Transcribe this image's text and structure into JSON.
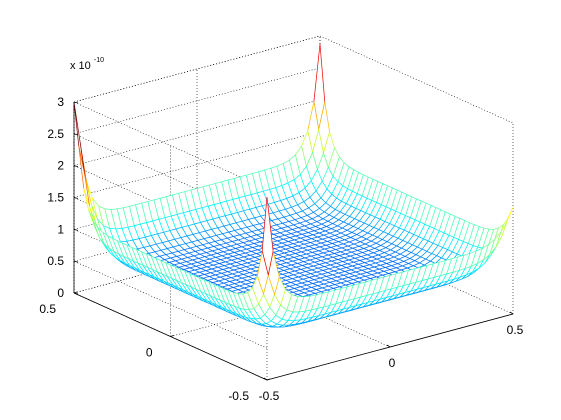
{
  "chart_data": {
    "type": "mesh3d",
    "title": "",
    "xlabel": "",
    "ylabel": "",
    "zlabel": "",
    "z_exponent_label": {
      "prefix": "x 10",
      "exponent": "-10"
    },
    "x_ticks": [
      {
        "value": -0.5,
        "label": "-0.5"
      },
      {
        "value": 0,
        "label": "0"
      },
      {
        "value": 0.5,
        "label": "0.5"
      }
    ],
    "y_ticks": [
      {
        "value": -0.5,
        "label": "-0.5"
      },
      {
        "value": 0,
        "label": "0"
      },
      {
        "value": 0.5,
        "label": "0.5"
      }
    ],
    "z_ticks": [
      {
        "value": 0,
        "label": "0"
      },
      {
        "value": 0.5,
        "label": "0.5"
      },
      {
        "value": 1,
        "label": "1"
      },
      {
        "value": 1.5,
        "label": "1.5"
      },
      {
        "value": 2,
        "label": "2"
      },
      {
        "value": 2.5,
        "label": "2.5"
      },
      {
        "value": 3,
        "label": "3"
      }
    ],
    "xlim": [
      -0.5,
      0.5
    ],
    "ylim": [
      -0.5,
      0.5
    ],
    "zlim": [
      0,
      3
    ],
    "grid": true,
    "colormap": "jet",
    "surface": {
      "grid_n": 40,
      "z_base": 0.45,
      "z_edge_gain": 1.5,
      "corner_peaks": [
        {
          "x": -0.5,
          "y": 0.5,
          "z": 3.0
        },
        {
          "x": 0.5,
          "y": -0.5,
          "z": 1.0
        },
        {
          "x": -0.5,
          "y": -0.5,
          "z": 2.2
        },
        {
          "x": 0.5,
          "y": 0.5,
          "z": 2.2
        }
      ]
    }
  }
}
